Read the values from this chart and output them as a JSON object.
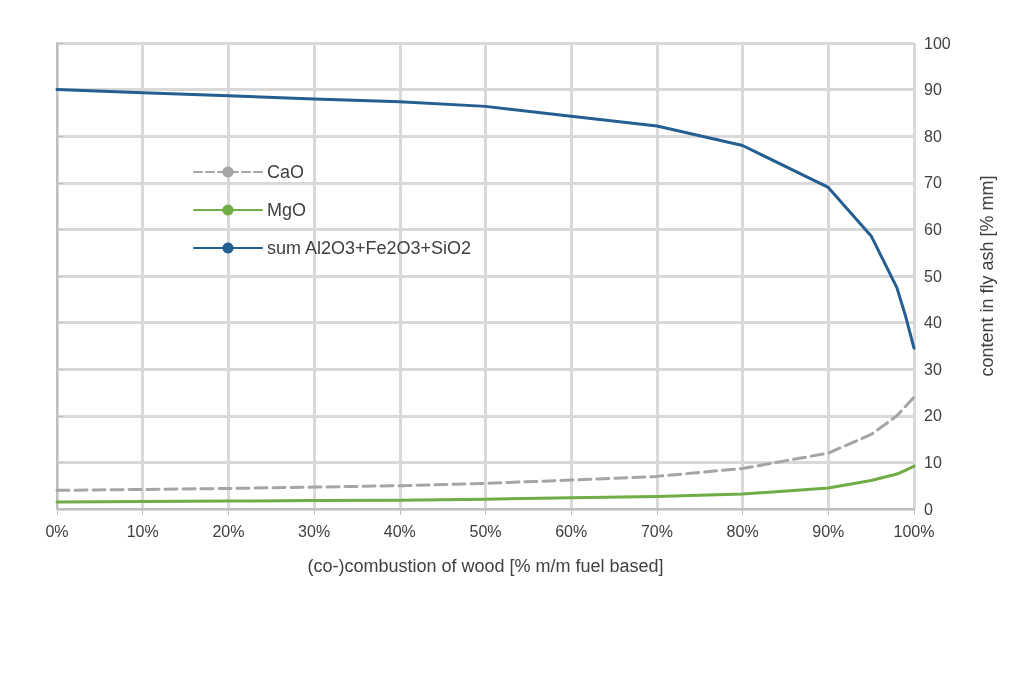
{
  "chart_data": {
    "type": "line",
    "xlabel": "(co-)combustion of wood [% m/m fuel based]",
    "ylabel": "content in fly ash [% mm]",
    "x": [
      0,
      10,
      20,
      30,
      40,
      50,
      60,
      70,
      80,
      90,
      95,
      98,
      99,
      100
    ],
    "xlim": [
      0,
      100
    ],
    "xticks": [
      {
        "value": 0,
        "label": "0%"
      },
      {
        "value": 10,
        "label": "10%"
      },
      {
        "value": 20,
        "label": "20%"
      },
      {
        "value": 30,
        "label": "30%"
      },
      {
        "value": 40,
        "label": "40%"
      },
      {
        "value": 50,
        "label": "50%"
      },
      {
        "value": 60,
        "label": "60%"
      },
      {
        "value": 70,
        "label": "70%"
      },
      {
        "value": 80,
        "label": "80%"
      },
      {
        "value": 90,
        "label": "90%"
      },
      {
        "value": 100,
        "label": "100%"
      }
    ],
    "ylim": [
      0,
      100
    ],
    "yticks": [
      0,
      10,
      20,
      30,
      40,
      50,
      60,
      70,
      80,
      90,
      100
    ],
    "grid": true,
    "legend": "top left",
    "marker": "none",
    "series": [
      {
        "name": "CaO",
        "color": "#a5a5a5",
        "line_style": "dashed",
        "values": [
          4,
          4.2,
          4.4,
          4.7,
          5,
          5.5,
          6.2,
          7,
          8.7,
          12,
          16,
          20,
          22,
          24
        ]
      },
      {
        "name": "MgO",
        "color": "#70ad47",
        "line_style": "solid",
        "values": [
          1.5,
          1.6,
          1.7,
          1.8,
          1.9,
          2.1,
          2.4,
          2.7,
          3.2,
          4.5,
          6.1,
          7.5,
          8.3,
          9.2
        ]
      },
      {
        "name": "sum Al2O3+Fe2O3+SiO2",
        "color": "#255e91",
        "line_style": "solid",
        "values": [
          90,
          89.3,
          88.7,
          88,
          87.4,
          86.4,
          84.3,
          82.2,
          78,
          69,
          58.6,
          47.5,
          41.5,
          34.5
        ]
      }
    ]
  }
}
